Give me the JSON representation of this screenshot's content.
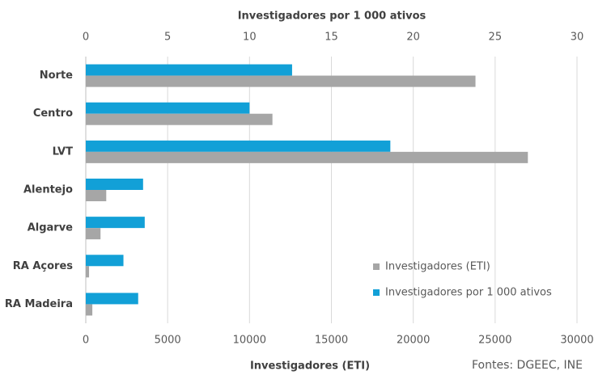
{
  "chart_data": {
    "type": "bar",
    "orientation": "horizontal",
    "title": "Investigadores por 1 000 ativos",
    "x_label": "Investigadores (ETI)",
    "source": "Fontes: DGEEC, INE",
    "categories": [
      "Norte",
      "Centro",
      "LVT",
      "Alentejo",
      "Algarve",
      "RA Açores",
      "RA Madeira"
    ],
    "series": [
      {
        "name": "Investigadores por 1 000 ativos",
        "color": "#12a0d7",
        "axis": "x2",
        "values": [
          12.6,
          10.0,
          18.6,
          3.5,
          3.6,
          2.3,
          3.2
        ]
      },
      {
        "name": "Investigadores (ETI)",
        "color": "#a6a6a6",
        "axis": "x",
        "values": [
          23800,
          11400,
          27000,
          1250,
          900,
          200,
          400
        ]
      }
    ],
    "xlim": [
      0,
      30000
    ],
    "xticks": [
      0,
      5000,
      10000,
      15000,
      20000,
      25000,
      30000
    ],
    "x2lim": [
      0,
      30
    ],
    "x2ticks": [
      0,
      5,
      10,
      15,
      20,
      25,
      30
    ],
    "grid": true,
    "legend": "lower right"
  }
}
